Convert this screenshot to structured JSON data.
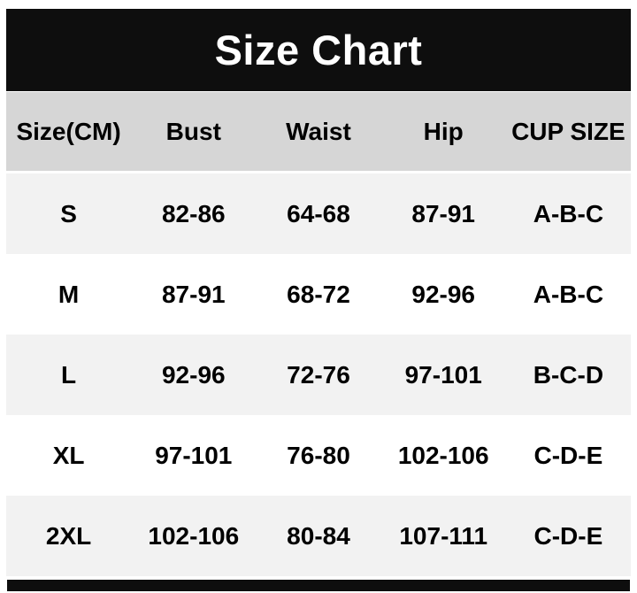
{
  "page": {
    "title": "Size Chart"
  },
  "colors": {
    "banner_bg": "#0e0e0e",
    "banner_text": "#ffffff",
    "header_row_bg": "#d6d6d6",
    "alt_row_bg": "#f2f2f2",
    "row_bg": "#ffffff",
    "text": "#000000",
    "bottom_bar": "#0e0e0e"
  },
  "chart_data": {
    "type": "table",
    "title": "Size Chart",
    "unit": "CM",
    "columns": [
      "Size(CM)",
      "Bust",
      "Waist",
      "Hip",
      "CUP SIZE"
    ],
    "rows": [
      [
        "S",
        "82-86",
        "64-68",
        "87-91",
        "A-B-C"
      ],
      [
        "M",
        "87-91",
        "68-72",
        "92-96",
        "A-B-C"
      ],
      [
        "L",
        "92-96",
        "72-76",
        "97-101",
        "B-C-D"
      ],
      [
        "XL",
        "97-101",
        "76-80",
        "102-106",
        "C-D-E"
      ],
      [
        "2XL",
        "102-106",
        "80-84",
        "107-111",
        "C-D-E"
      ]
    ],
    "layout": {
      "columns_equal_width": true,
      "alternating_row_shading": [
        "shaded",
        "white",
        "shaded",
        "white",
        "shaded"
      ],
      "gridlines": false
    }
  }
}
